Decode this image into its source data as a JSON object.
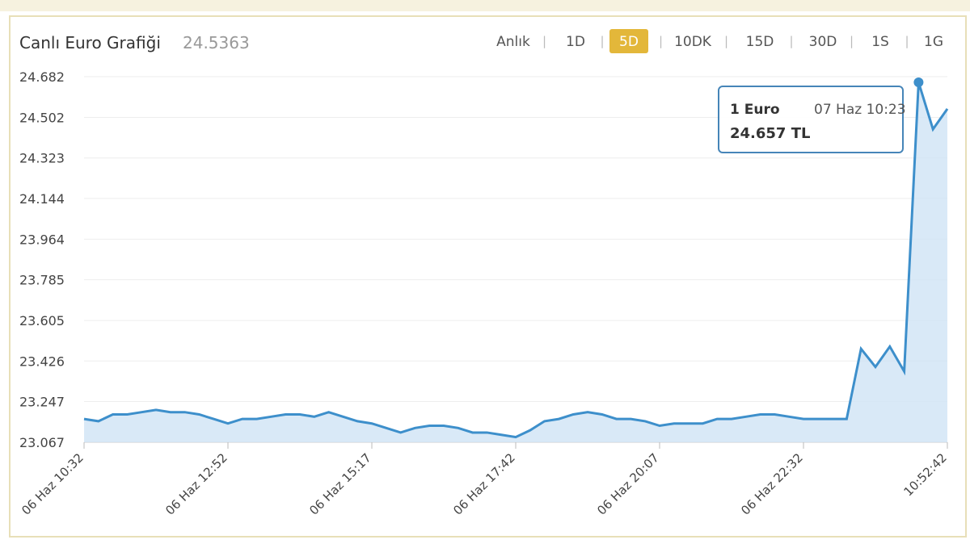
{
  "header": {
    "title": "Canlı Euro Grafiği",
    "price": "24.5363"
  },
  "tabs": [
    "Anlık",
    "1D",
    "5D",
    "10DK",
    "15D",
    "30D",
    "1S",
    "1G"
  ],
  "active_tab": "5D",
  "tooltip": {
    "unit": "1 Euro",
    "time": "07 Haz 10:23",
    "price": "24.657 TL"
  },
  "chart_data": {
    "type": "line",
    "color": "#3d8fcb",
    "fill": "#cfe3f5",
    "categories": [
      "06 Haz 10:32",
      null,
      null,
      null,
      null,
      null,
      null,
      null,
      null,
      null,
      "06 Haz 12:52",
      null,
      null,
      null,
      null,
      null,
      null,
      null,
      null,
      null,
      "06 Haz 15:17",
      null,
      null,
      null,
      null,
      null,
      null,
      null,
      null,
      null,
      "06 Haz 17:42",
      null,
      null,
      null,
      null,
      null,
      null,
      null,
      null,
      null,
      "06 Haz 20:07",
      null,
      null,
      null,
      null,
      null,
      null,
      null,
      null,
      null,
      "06 Haz 22:32",
      null,
      null,
      null,
      null,
      null,
      null,
      null,
      null,
      null,
      "10:52:42"
    ],
    "values": [
      23.17,
      23.16,
      23.19,
      23.19,
      23.2,
      23.21,
      23.2,
      23.2,
      23.19,
      23.17,
      23.15,
      23.17,
      23.17,
      23.18,
      23.19,
      23.19,
      23.18,
      23.2,
      23.18,
      23.16,
      23.15,
      23.13,
      23.11,
      23.13,
      23.14,
      23.14,
      23.13,
      23.11,
      23.11,
      23.1,
      23.09,
      23.12,
      23.16,
      23.17,
      23.19,
      23.2,
      23.19,
      23.17,
      23.17,
      23.16,
      23.14,
      23.15,
      23.15,
      23.15,
      23.17,
      23.17,
      23.18,
      23.19,
      23.19,
      23.18,
      23.17,
      23.17,
      23.17,
      23.17,
      23.48,
      23.4,
      23.49,
      23.38,
      24.657,
      24.45,
      24.54
    ],
    "ylim": [
      23.067,
      24.682
    ],
    "yticks": [
      23.067,
      23.247,
      23.426,
      23.605,
      23.785,
      23.964,
      24.144,
      24.323,
      24.502,
      24.682
    ],
    "grid": true
  }
}
